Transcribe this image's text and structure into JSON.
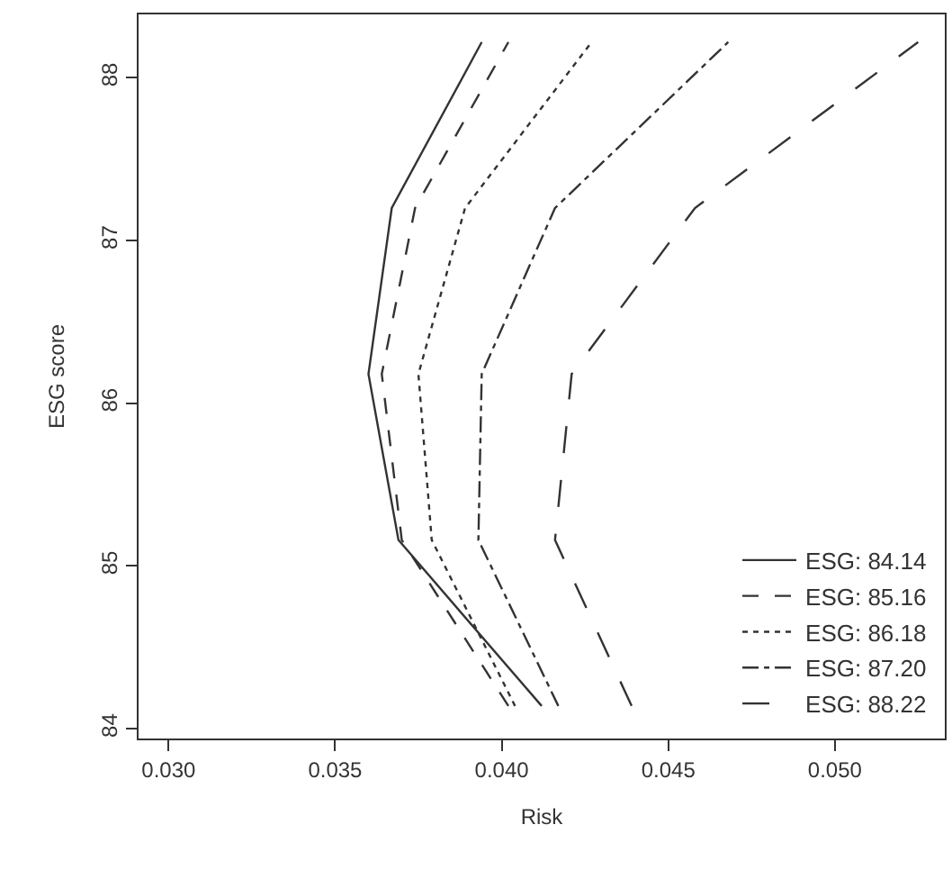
{
  "chart_data": {
    "type": "line",
    "xlabel": "Risk",
    "ylabel": "ESG score",
    "xlim": [
      0.0291,
      0.0533
    ],
    "xticks": [
      {
        "value": 0.03,
        "label": "0.030"
      },
      {
        "value": 0.035,
        "label": "0.035"
      },
      {
        "value": 0.04,
        "label": "0.040"
      },
      {
        "value": 0.045,
        "label": "0.045"
      },
      {
        "value": 0.05,
        "label": "0.050"
      }
    ],
    "ylim": [
      83.94,
      88.39
    ],
    "yticks": [
      84,
      85,
      86,
      87,
      88
    ],
    "legend": "bottom right",
    "marker": "none",
    "series": [
      {
        "name": "ESG: 84.14",
        "color": "#333333",
        "line_style": "solid",
        "x": [
          0.0412,
          0.0369,
          0.036,
          0.0367,
          0.0394
        ],
        "values": [
          84.14,
          85.16,
          86.18,
          87.2,
          88.22
        ]
      },
      {
        "name": "ESG: 85.16",
        "color": "#333333",
        "line_style": "dashed",
        "x": [
          0.0402,
          0.037,
          0.0364,
          0.0374,
          0.0402
        ],
        "values": [
          84.14,
          85.16,
          86.18,
          87.2,
          88.22
        ]
      },
      {
        "name": "ESG: 86.18",
        "color": "#333333",
        "line_style": "dotted",
        "x": [
          0.0404,
          0.0379,
          0.0375,
          0.0389,
          0.0427
        ],
        "values": [
          84.14,
          85.16,
          86.18,
          87.2,
          88.22
        ]
      },
      {
        "name": "ESG: 87.20",
        "color": "#333333",
        "line_style": "dashdot",
        "x": [
          0.0417,
          0.0393,
          0.0394,
          0.0416,
          0.0468
        ],
        "values": [
          84.14,
          85.16,
          86.18,
          87.2,
          88.22
        ]
      },
      {
        "name": "ESG: 88.22",
        "color": "#333333",
        "line_style": "longdash",
        "x": [
          0.0439,
          0.0416,
          0.0421,
          0.0458,
          0.0525
        ],
        "values": [
          84.14,
          85.16,
          86.18,
          87.2,
          88.22
        ]
      }
    ]
  }
}
